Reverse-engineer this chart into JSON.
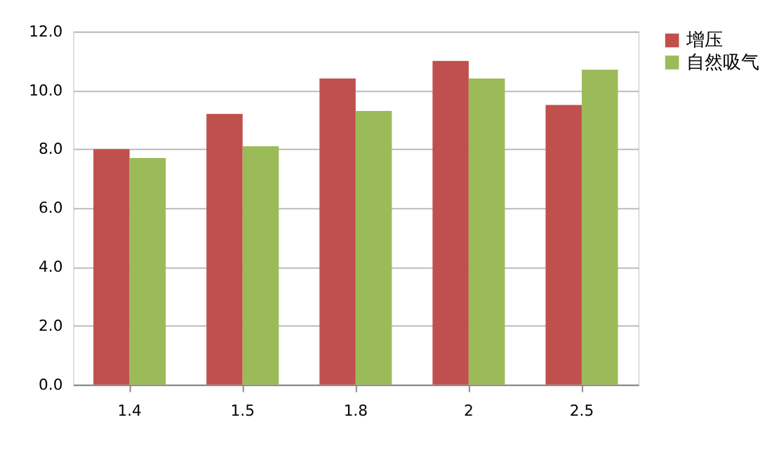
{
  "chart_data": {
    "type": "bar",
    "categories": [
      "1.4",
      "1.5",
      "1.8",
      "2",
      "2.5"
    ],
    "series": [
      {
        "name": "增压",
        "color": "#c0504d",
        "values": [
          8.0,
          9.2,
          10.4,
          11.0,
          9.5
        ]
      },
      {
        "name": "自然吸气",
        "color": "#9bbb59",
        "values": [
          7.7,
          8.1,
          9.3,
          10.4,
          10.7
        ]
      }
    ],
    "ylim": [
      0,
      12
    ],
    "yticks": [
      {
        "value": 0,
        "label": "0.0"
      },
      {
        "value": 2,
        "label": "2.0"
      },
      {
        "value": 4,
        "label": "4.0"
      },
      {
        "value": 6,
        "label": "6.0"
      },
      {
        "value": 8,
        "label": "8.0"
      },
      {
        "value": 10,
        "label": "10.0"
      },
      {
        "value": 12,
        "label": "12.0"
      }
    ],
    "grid": "y",
    "legend": "right"
  }
}
